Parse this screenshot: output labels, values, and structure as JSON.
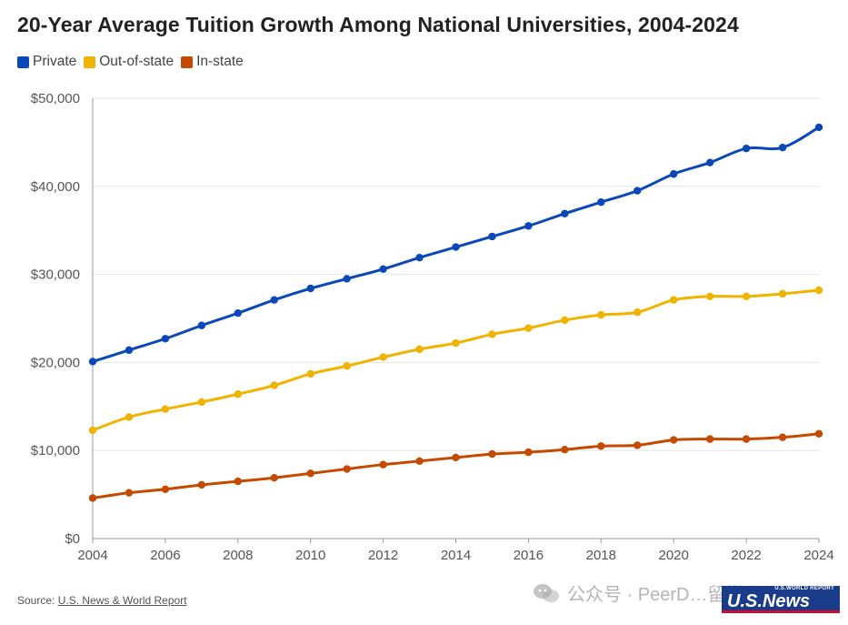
{
  "title": "20-Year Average Tuition Growth Among National Universities, 2004-2024",
  "legend": [
    {
      "label": "Private",
      "color": "#0a47b8"
    },
    {
      "label": "Out-of-state",
      "color": "#f0b400"
    },
    {
      "label": "In-state",
      "color": "#c44a00"
    }
  ],
  "source": {
    "prefix": "Source: ",
    "link_text": "U.S. News & World Report"
  },
  "watermark": {
    "text": "公众号 · PeerD…留学",
    "icon": "wechat-icon"
  },
  "logo": {
    "top_text": "U.S.WORLD REPORT",
    "main_text": "U.S.News"
  },
  "colors": {
    "grid": "#e6e6e6",
    "axis": "#999999",
    "tick_text": "#555555"
  },
  "chart_data": {
    "type": "line",
    "title": "20-Year Average Tuition Growth Among National Universities, 2004-2024",
    "xlabel": "",
    "ylabel": "",
    "x": [
      2004,
      2005,
      2006,
      2007,
      2008,
      2009,
      2010,
      2011,
      2012,
      2013,
      2014,
      2015,
      2016,
      2017,
      2018,
      2019,
      2020,
      2021,
      2022,
      2023,
      2024
    ],
    "xlim": [
      2004,
      2024
    ],
    "ylim": [
      0,
      50000
    ],
    "x_ticks": [
      "2004",
      "2006",
      "2008",
      "2010",
      "2012",
      "2014",
      "2016",
      "2018",
      "2020",
      "2022",
      "2024"
    ],
    "x_tick_values": [
      2004,
      2006,
      2008,
      2010,
      2012,
      2014,
      2016,
      2018,
      2020,
      2022,
      2024
    ],
    "y_ticks": [
      "$0",
      "$10,000",
      "$20,000",
      "$30,000",
      "$40,000",
      "$50,000"
    ],
    "y_tick_values": [
      0,
      10000,
      20000,
      30000,
      40000,
      50000
    ],
    "grid": true,
    "legend_position": "top-left",
    "series": [
      {
        "name": "Private",
        "color": "#0a47b8",
        "values": [
          20100,
          21400,
          22700,
          24200,
          25600,
          27100,
          28400,
          29500,
          30600,
          31900,
          33100,
          34300,
          35500,
          36900,
          38200,
          39500,
          41400,
          42700,
          44300,
          44400,
          46700
        ]
      },
      {
        "name": "Out-of-state",
        "color": "#f0b400",
        "values": [
          12300,
          13800,
          14700,
          15500,
          16400,
          17400,
          18700,
          19600,
          20600,
          21500,
          22200,
          23200,
          23900,
          24800,
          25400,
          25700,
          27100,
          27500,
          27500,
          27800,
          28200
        ]
      },
      {
        "name": "In-state",
        "color": "#c44a00",
        "values": [
          4600,
          5200,
          5600,
          6100,
          6500,
          6900,
          7400,
          7900,
          8400,
          8800,
          9200,
          9600,
          9800,
          10100,
          10500,
          10600,
          11200,
          11300,
          11300,
          11500,
          11900
        ]
      }
    ]
  }
}
